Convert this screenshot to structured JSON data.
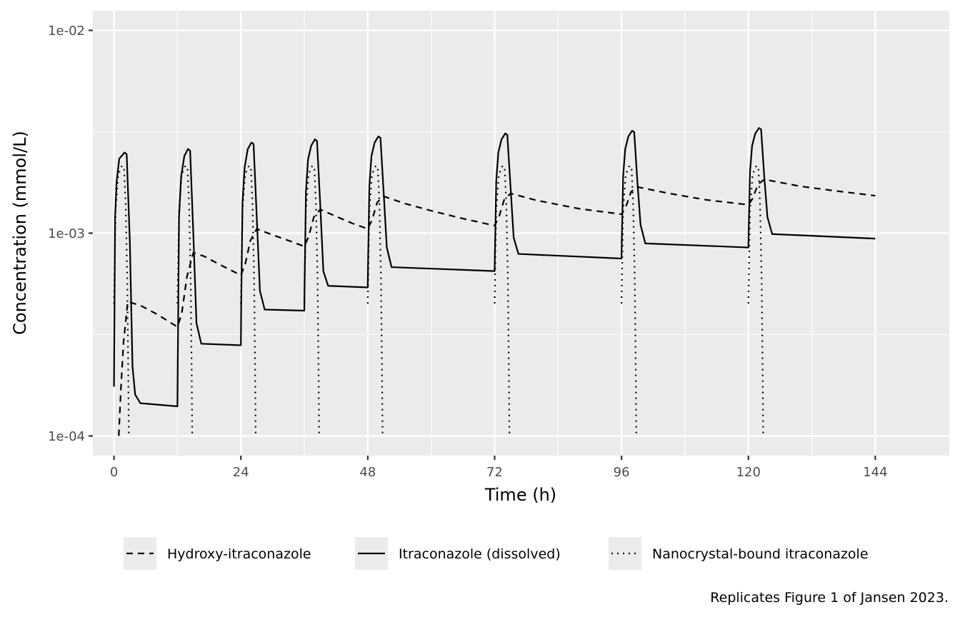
{
  "chart_data": {
    "type": "line",
    "xlabel": "Time (h)",
    "ylabel": "Concentration (mmol/L)",
    "yscale": "log10",
    "xlim": [
      -4,
      158
    ],
    "ylim": [
      8e-05,
      0.0125
    ],
    "xticks": [
      0,
      24,
      48,
      72,
      96,
      120,
      144
    ],
    "xtick_labels": [
      "0",
      "24",
      "48",
      "72",
      "96",
      "120",
      "144"
    ],
    "yticks": [
      0.0001,
      0.001,
      0.01
    ],
    "ytick_labels": [
      "1e-04",
      "1e-03",
      "1e-02"
    ],
    "grid": true,
    "legend_position": "bottom",
    "caption": "Replicates Figure 1 of Jansen 2023.",
    "doses": [
      0,
      12,
      24,
      36,
      48,
      72,
      96,
      120
    ],
    "series": [
      {
        "name": "Hydroxy-itraconazole",
        "linetype": "dashed",
        "points": [
          [
            0.9,
            0.0001
          ],
          [
            1.3,
            0.00017
          ],
          [
            1.8,
            0.00029
          ],
          [
            2.6,
            0.00046
          ],
          [
            5,
            0.00044
          ],
          [
            8,
            0.0004
          ],
          [
            12,
            0.000345
          ],
          [
            12.8,
            0.0004
          ],
          [
            13.8,
            0.00061
          ],
          [
            15,
            0.0008
          ],
          [
            17,
            0.00077
          ],
          [
            20,
            0.0007
          ],
          [
            24,
            0.00062
          ],
          [
            24.8,
            0.0007
          ],
          [
            25.8,
            0.00092
          ],
          [
            27,
            0.00105
          ],
          [
            30,
            0.00098
          ],
          [
            33,
            0.00092
          ],
          [
            36,
            0.00086
          ],
          [
            36.8,
            0.00096
          ],
          [
            37.8,
            0.0012
          ],
          [
            39,
            0.00131
          ],
          [
            42,
            0.00121
          ],
          [
            45,
            0.00112
          ],
          [
            48,
            0.00105
          ],
          [
            48.8,
            0.00116
          ],
          [
            49.8,
            0.00142
          ],
          [
            51,
            0.00152
          ],
          [
            55,
            0.0014
          ],
          [
            60,
            0.00129
          ],
          [
            66,
            0.00118
          ],
          [
            72,
            0.00109
          ],
          [
            72.8,
            0.0012
          ],
          [
            73.8,
            0.00146
          ],
          [
            75,
            0.00157
          ],
          [
            80,
            0.00145
          ],
          [
            88,
            0.00132
          ],
          [
            96,
            0.00124
          ],
          [
            96.8,
            0.00134
          ],
          [
            97.8,
            0.0016
          ],
          [
            99,
            0.00169
          ],
          [
            105,
            0.00157
          ],
          [
            112,
            0.00146
          ],
          [
            120,
            0.00138
          ],
          [
            120.8,
            0.00148
          ],
          [
            121.8,
            0.00174
          ],
          [
            123,
            0.00184
          ],
          [
            130,
            0.0017
          ],
          [
            137,
            0.00161
          ],
          [
            144,
            0.00153
          ]
        ]
      },
      {
        "name": "Itraconazole (dissolved)",
        "linetype": "solid",
        "points": [
          [
            0,
            0.000175
          ],
          [
            0.2,
            0.0012
          ],
          [
            0.5,
            0.0018
          ],
          [
            1,
            0.00233
          ],
          [
            2,
            0.0025
          ],
          [
            2.4,
            0.00245
          ],
          [
            3,
            0.0009
          ],
          [
            3.5,
            0.00022
          ],
          [
            4,
            0.00016
          ],
          [
            5,
            0.000145
          ],
          [
            12,
            0.00014
          ],
          [
            12.05,
            0.00021
          ],
          [
            12.3,
            0.0012
          ],
          [
            12.7,
            0.0019
          ],
          [
            13.3,
            0.0024
          ],
          [
            14,
            0.0026
          ],
          [
            14.4,
            0.00255
          ],
          [
            15,
            0.001
          ],
          [
            15.6,
            0.00036
          ],
          [
            16.5,
            0.000285
          ],
          [
            24,
            0.00028
          ],
          [
            24.05,
            0.00042
          ],
          [
            24.3,
            0.0014
          ],
          [
            24.7,
            0.0021
          ],
          [
            25.3,
            0.0026
          ],
          [
            26,
            0.0028
          ],
          [
            26.4,
            0.00275
          ],
          [
            27,
            0.0012
          ],
          [
            27.6,
            0.00052
          ],
          [
            28.5,
            0.00042
          ],
          [
            36,
            0.000415
          ],
          [
            36.05,
            0.00055
          ],
          [
            36.3,
            0.0016
          ],
          [
            36.7,
            0.0023
          ],
          [
            37.3,
            0.0027
          ],
          [
            38,
            0.0029
          ],
          [
            38.4,
            0.00285
          ],
          [
            39,
            0.0014
          ],
          [
            39.6,
            0.00065
          ],
          [
            40.5,
            0.00055
          ],
          [
            48,
            0.00054
          ],
          [
            48.05,
            0.0007
          ],
          [
            48.3,
            0.0017
          ],
          [
            48.7,
            0.0024
          ],
          [
            49.3,
            0.0028
          ],
          [
            50,
            0.003
          ],
          [
            50.4,
            0.00295
          ],
          [
            51,
            0.0016
          ],
          [
            51.6,
            0.00085
          ],
          [
            52.5,
            0.00068
          ],
          [
            72,
            0.00065
          ],
          [
            72.05,
            0.0008
          ],
          [
            72.3,
            0.0018
          ],
          [
            72.7,
            0.0025
          ],
          [
            73.3,
            0.0029
          ],
          [
            74,
            0.0031
          ],
          [
            74.4,
            0.00305
          ],
          [
            75,
            0.0017
          ],
          [
            75.6,
            0.00095
          ],
          [
            76.5,
            0.00079
          ],
          [
            96,
            0.00075
          ],
          [
            96.05,
            0.00092
          ],
          [
            96.3,
            0.0019
          ],
          [
            96.7,
            0.0026
          ],
          [
            97.3,
            0.003
          ],
          [
            98,
            0.0032
          ],
          [
            98.4,
            0.00315
          ],
          [
            99,
            0.0018
          ],
          [
            99.6,
            0.0011
          ],
          [
            100.5,
            0.00089
          ],
          [
            120,
            0.00085
          ],
          [
            120.05,
            0.00102
          ],
          [
            120.3,
            0.002
          ],
          [
            120.7,
            0.0027
          ],
          [
            121.3,
            0.0031
          ],
          [
            122,
            0.0033
          ],
          [
            122.4,
            0.00325
          ],
          [
            123,
            0.0019
          ],
          [
            123.6,
            0.0012
          ],
          [
            124.5,
            0.00099
          ],
          [
            144,
            0.00094
          ]
        ]
      },
      {
        "name": "Nanocrystal-bound itraconazole",
        "linetype": "dotted",
        "dose_profile": [
          [
            0,
            0.00045
          ],
          [
            0.3,
            0.0013
          ],
          [
            0.8,
            0.00195
          ],
          [
            1.5,
            0.00215
          ],
          [
            1.9,
            0.0021
          ],
          [
            2.2,
            0.0014
          ],
          [
            2.5,
            0.0006
          ],
          [
            2.7,
            0.0002
          ],
          [
            2.8,
            0.0001
          ]
        ]
      }
    ]
  }
}
